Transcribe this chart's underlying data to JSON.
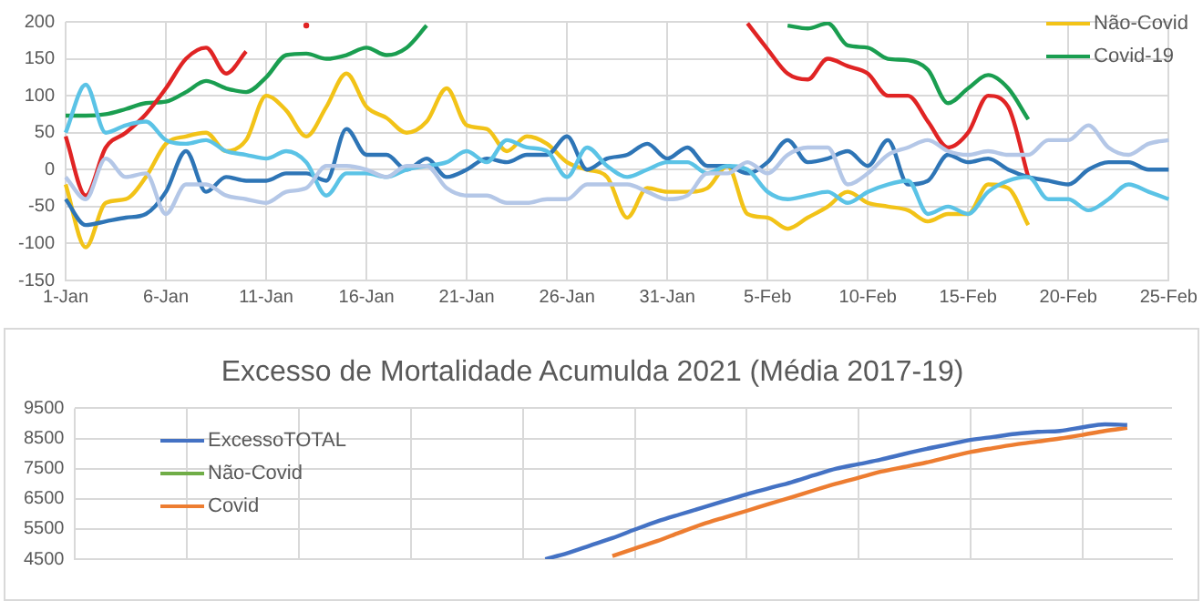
{
  "chart_data": [
    {
      "type": "line",
      "categories": [
        "1-Jan",
        null,
        null,
        null,
        null,
        "6-Jan",
        null,
        null,
        null,
        null,
        "11-Jan",
        null,
        null,
        null,
        null,
        "16-Jan",
        null,
        null,
        null,
        null,
        "21-Jan",
        null,
        null,
        null,
        null,
        "26-Jan",
        null,
        null,
        null,
        null,
        "31-Jan",
        null,
        null,
        null,
        null,
        "5-Feb",
        null,
        null,
        null,
        null,
        "10-Feb",
        null,
        null,
        null,
        null,
        "15-Feb",
        null,
        null,
        null,
        null,
        "20-Feb",
        null,
        null,
        null,
        null,
        "25-Feb"
      ],
      "series": [
        {
          "color": "#b4c7e7",
          "values": [
            -10,
            -40,
            15,
            -10,
            -5,
            -60,
            -20,
            -20,
            -35,
            -40,
            -45,
            -30,
            -25,
            5,
            5,
            0,
            -10,
            5,
            5,
            -25,
            -35,
            -35,
            -45,
            -45,
            -40,
            -40,
            -20,
            -20,
            -20,
            -30,
            -40,
            -35,
            -5,
            -5,
            10,
            -5,
            20,
            30,
            30,
            -20,
            -5,
            20,
            30,
            40,
            25,
            20,
            25,
            20,
            20,
            40,
            40,
            60,
            30,
            20,
            35,
            40
          ]
        },
        {
          "color": "#5bc3e6",
          "values": [
            50,
            115,
            50,
            60,
            65,
            40,
            35,
            40,
            25,
            20,
            15,
            25,
            10,
            -35,
            -5,
            -5,
            -10,
            0,
            5,
            10,
            25,
            10,
            40,
            30,
            25,
            -10,
            30,
            5,
            -10,
            0,
            10,
            10,
            -5,
            5,
            0,
            -30,
            -40,
            -35,
            -30,
            -45,
            -30,
            -20,
            -15,
            -60,
            -50,
            -60,
            -30,
            -15,
            -10,
            -40,
            -40,
            -55,
            -40,
            -20,
            -30,
            -40
          ]
        },
        {
          "color": "#2e75b6",
          "values": [
            -40,
            -75,
            -70,
            -65,
            -60,
            -30,
            25,
            -30,
            -10,
            -15,
            -15,
            -5,
            -5,
            -15,
            55,
            20,
            20,
            0,
            15,
            -10,
            0,
            15,
            10,
            20,
            20,
            45,
            0,
            15,
            20,
            35,
            15,
            30,
            5,
            5,
            -5,
            10,
            40,
            10,
            15,
            25,
            5,
            40,
            -20,
            -15,
            20,
            10,
            15,
            0,
            -10,
            -15,
            -20,
            0,
            10,
            10,
            0,
            0
          ]
        },
        {
          "color": "#e02424",
          "values": [
            45,
            -35,
            30,
            50,
            75,
            110,
            150,
            165,
            130,
            160,
            null,
            null,
            195,
            null,
            null,
            null,
            null,
            null,
            null,
            null,
            null,
            null,
            null,
            null,
            null,
            null,
            null,
            null,
            null,
            null,
            null,
            null,
            null,
            null,
            198,
            163,
            130,
            122,
            150,
            140,
            130,
            100,
            100,
            65,
            30,
            50,
            100,
            85,
            -10,
            null,
            null,
            null,
            null,
            null,
            null,
            null
          ]
        },
        {
          "name": "Não-Covid",
          "color": "#f2c318",
          "values": [
            -20,
            -105,
            -45,
            -40,
            -10,
            35,
            45,
            50,
            25,
            40,
            100,
            80,
            45,
            85,
            130,
            85,
            70,
            50,
            65,
            110,
            60,
            55,
            25,
            45,
            35,
            10,
            0,
            -10,
            -65,
            -25,
            -30,
            -30,
            -25,
            5,
            -60,
            -65,
            -80,
            -65,
            -50,
            -30,
            -45,
            -50,
            -55,
            -70,
            -60,
            -60,
            -20,
            -25,
            -75,
            null,
            null,
            null,
            null,
            null,
            null,
            null
          ]
        },
        {
          "name": "Covid-19",
          "color": "#1a9e50",
          "values": [
            73,
            73,
            75,
            82,
            90,
            92,
            105,
            120,
            110,
            105,
            125,
            155,
            157,
            150,
            155,
            165,
            155,
            165,
            195,
            null,
            null,
            null,
            null,
            null,
            null,
            null,
            null,
            null,
            null,
            null,
            null,
            null,
            null,
            null,
            null,
            null,
            195,
            191,
            198,
            168,
            165,
            150,
            148,
            135,
            90,
            110,
            128,
            110,
            68,
            null,
            null,
            null,
            null,
            null,
            null,
            null
          ]
        }
      ],
      "ylim": [
        -150,
        200
      ],
      "yticks": [
        -150,
        -100,
        -50,
        0,
        50,
        100,
        150,
        200
      ],
      "grid": true,
      "legend": "top right"
    },
    {
      "type": "line",
      "title": "Excesso de Mortalidade Acumulda 2021 (Média 2017-19)",
      "categories": [
        null,
        null,
        null,
        null,
        null,
        null,
        null,
        null,
        null,
        null,
        null,
        null,
        null,
        null,
        null,
        null,
        null,
        null,
        null,
        null,
        null,
        null,
        null,
        null,
        null,
        null,
        null,
        null,
        null,
        null,
        null,
        null,
        null,
        null,
        null,
        null,
        null,
        null,
        null,
        null,
        null,
        null,
        null,
        null,
        null,
        null,
        null,
        null,
        null,
        null
      ],
      "series": [
        {
          "name": "ExcessoTOTAL",
          "color": "#4472c4",
          "values": [
            null,
            null,
            null,
            null,
            null,
            null,
            null,
            null,
            null,
            null,
            null,
            null,
            null,
            null,
            null,
            null,
            null,
            null,
            null,
            null,
            null,
            4500,
            4700,
            4950,
            5200,
            5480,
            5750,
            5980,
            6200,
            6430,
            6650,
            6850,
            7050,
            7280,
            7500,
            7650,
            7800,
            7980,
            8150,
            8300,
            8450,
            8550,
            8650,
            8720,
            8750,
            8870,
            8970,
            8950,
            null,
            null
          ]
        },
        {
          "name": "Não-Covid",
          "color": "#70ad47",
          "values": [
            null,
            null,
            null,
            null,
            null,
            null,
            null,
            null,
            null,
            null,
            null,
            null,
            null,
            null,
            null,
            null,
            null,
            null,
            null,
            null,
            null,
            null,
            null,
            null,
            null,
            null,
            null,
            null,
            null,
            null,
            null,
            null,
            null,
            null,
            null,
            null,
            null,
            null,
            null,
            null,
            null,
            null,
            null,
            null,
            null,
            null,
            null,
            null,
            null,
            null
          ]
        },
        {
          "name": "Covid",
          "color": "#ed7d31",
          "values": [
            null,
            null,
            null,
            null,
            null,
            null,
            null,
            null,
            null,
            null,
            null,
            null,
            null,
            null,
            null,
            null,
            null,
            null,
            null,
            null,
            null,
            null,
            null,
            null,
            4600,
            4850,
            5100,
            5380,
            5650,
            5880,
            6100,
            6330,
            6550,
            6780,
            7000,
            7200,
            7400,
            7550,
            7700,
            7880,
            8050,
            8180,
            8300,
            8400,
            8500,
            8620,
            8750,
            8850,
            null,
            null
          ]
        }
      ],
      "ylim": [
        4500,
        9500
      ],
      "yticks": [
        4500,
        5500,
        6500,
        7500,
        8500,
        9500
      ],
      "grid": true,
      "legend": "top left"
    }
  ]
}
